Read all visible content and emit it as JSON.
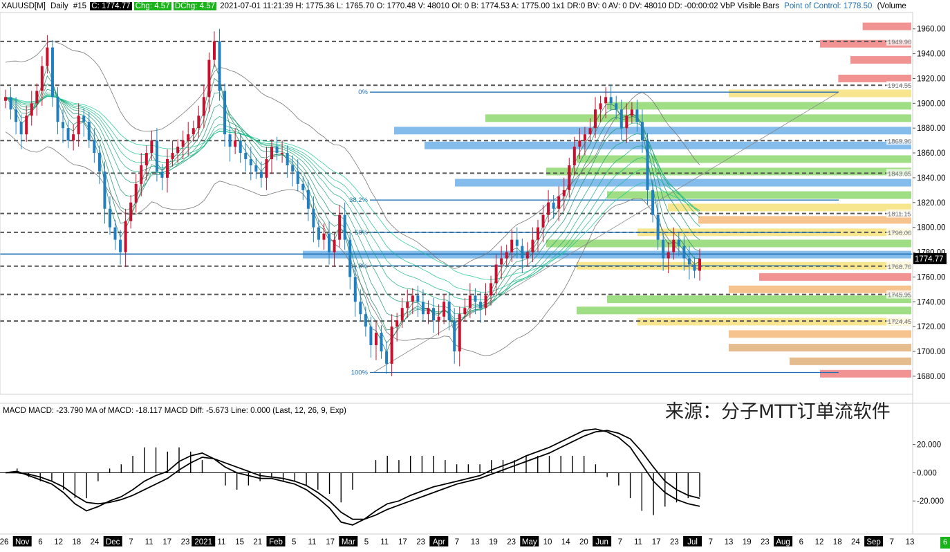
{
  "header": {
    "symbol": "XAUUSD[M]",
    "period": "Daily",
    "chart_no": "#15",
    "close": "C: 1774.77",
    "chg": "Chg: 4.57",
    "dchg": "DChg: 4.57",
    "rest": "2021-07-01 11:21:39 H: 1775.36 L: 1765.70 O: 1770.48 V: 48010 OI: 0 B: 1774.53 A: 1775.00 1x1 DR:0 BV: 0 AV: 0 DV: 48010 DD: -00:00:02 VbP Visible Bars",
    "poc": "Point of Control: 1778.50",
    "volume_cut": "(Volume"
  },
  "macd_header": "MACD  MACD: -23.790  MA of MACD: -18.117  MACD Diff: -5.673  Line: 0.000   (Last, 12, 26, 9, Exp)",
  "watermark": "来源：分子MTT订单流软件",
  "status_badge": "6",
  "colors": {
    "up": "#c8102e",
    "down": "#1f7fc0",
    "dashed": "#555555",
    "fib": "#1f6fb5",
    "vbp_red": "#f08080",
    "vbp_blue": "#6fb0e8",
    "vbp_green": "#8fd870",
    "vbp_yellow": "#f7e27a",
    "vbp_orange": "#f5b97a",
    "vbp_tan": "#e0b07a"
  },
  "chart_data": {
    "type": "candlestick",
    "price_axis": {
      "ticks": [
        "1960.00",
        "1940.00",
        "1920.00",
        "1900.00",
        "1880.00",
        "1860.00",
        "1840.00",
        "1820.00",
        "1800.00",
        "1780.00",
        "1760.00",
        "1740.00",
        "1720.00",
        "1700.00",
        "1680.00"
      ],
      "tick_values": [
        1960,
        1940,
        1920,
        1900,
        1880,
        1860,
        1840,
        1820,
        1800,
        1780,
        1760,
        1740,
        1720,
        1700,
        1680
      ],
      "range": [
        1671,
        1971
      ],
      "current_price": "1774.77",
      "current_value": 1774.77
    },
    "macd_axis": {
      "ticks": [
        "20.000",
        "0.000",
        "-20.000"
      ],
      "tick_values": [
        20,
        0,
        -20
      ],
      "range": [
        -40,
        37
      ]
    },
    "date_axis": [
      {
        "label": "26",
        "hl": false
      },
      {
        "label": "Nov",
        "hl": true
      },
      {
        "label": "6",
        "hl": false
      },
      {
        "label": "12",
        "hl": false
      },
      {
        "label": "18",
        "hl": false
      },
      {
        "label": "24",
        "hl": false
      },
      {
        "label": "Dec",
        "hl": true
      },
      {
        "label": "7",
        "hl": false
      },
      {
        "label": "11",
        "hl": false
      },
      {
        "label": "17",
        "hl": false
      },
      {
        "label": "23",
        "hl": false
      },
      {
        "label": "2021",
        "hl": true
      },
      {
        "label": "11",
        "hl": false
      },
      {
        "label": "15",
        "hl": false
      },
      {
        "label": "21",
        "hl": false
      },
      {
        "label": "Feb",
        "hl": true
      },
      {
        "label": "5",
        "hl": false
      },
      {
        "label": "11",
        "hl": false
      },
      {
        "label": "17",
        "hl": false
      },
      {
        "label": "Mar",
        "hl": true
      },
      {
        "label": "5",
        "hl": false
      },
      {
        "label": "11",
        "hl": false
      },
      {
        "label": "17",
        "hl": false
      },
      {
        "label": "23",
        "hl": false
      },
      {
        "label": "Apr",
        "hl": true
      },
      {
        "label": "7",
        "hl": false
      },
      {
        "label": "13",
        "hl": false
      },
      {
        "label": "19",
        "hl": false
      },
      {
        "label": "23",
        "hl": false
      },
      {
        "label": "May",
        "hl": true
      },
      {
        "label": "10",
        "hl": false
      },
      {
        "label": "14",
        "hl": false
      },
      {
        "label": "20",
        "hl": false
      },
      {
        "label": "Jun",
        "hl": true
      },
      {
        "label": "7",
        "hl": false
      },
      {
        "label": "11",
        "hl": false
      },
      {
        "label": "17",
        "hl": false
      },
      {
        "label": "23",
        "hl": false
      },
      {
        "label": "Jul",
        "hl": true
      },
      {
        "label": "7",
        "hl": false
      },
      {
        "label": "13",
        "hl": false
      },
      {
        "label": "19",
        "hl": false
      },
      {
        "label": "23",
        "hl": false
      },
      {
        "label": "Aug",
        "hl": true
      },
      {
        "label": "6",
        "hl": false
      },
      {
        "label": "12",
        "hl": false
      },
      {
        "label": "18",
        "hl": false
      },
      {
        "label": "24",
        "hl": false
      },
      {
        "label": "Sep",
        "hl": true
      },
      {
        "label": "7",
        "hl": false
      },
      {
        "label": "13",
        "hl": false
      }
    ],
    "hvn_levels": [
      {
        "label": "1949.90",
        "value": 1949.9
      },
      {
        "label": "1914.55",
        "value": 1914.55
      },
      {
        "label": "1869.90",
        "value": 1869.9
      },
      {
        "label": "1843.65",
        "value": 1843.65
      },
      {
        "label": "1811.15",
        "value": 1811.15
      },
      {
        "label": "1796.00",
        "value": 1796.0
      },
      {
        "label": "1768.70",
        "value": 1768.7
      },
      {
        "label": "1745.95",
        "value": 1745.95
      },
      {
        "label": "1724.45",
        "value": 1724.45
      }
    ],
    "poc_value": 1778.5,
    "fib_levels": [
      {
        "label": "0%",
        "value": 1909
      },
      {
        "label": "38.2%",
        "value": 1822
      },
      {
        "label": "50%",
        "value": 1796
      },
      {
        "label": "61.8%",
        "value": 1769
      },
      {
        "label": "100%",
        "value": 1683
      }
    ],
    "closes": [
      1905,
      1895,
      1885,
      1875,
      1890,
      1900,
      1910,
      1930,
      1945,
      1905,
      1885,
      1880,
      1870,
      1875,
      1890,
      1885,
      1870,
      1860,
      1845,
      1815,
      1800,
      1790,
      1780,
      1805,
      1820,
      1835,
      1850,
      1860,
      1870,
      1845,
      1840,
      1855,
      1860,
      1865,
      1870,
      1875,
      1880,
      1890,
      1905,
      1935,
      1950,
      1910,
      1875,
      1865,
      1870,
      1860,
      1855,
      1850,
      1845,
      1840,
      1855,
      1865,
      1860,
      1860,
      1850,
      1845,
      1835,
      1830,
      1815,
      1800,
      1790,
      1795,
      1780,
      1790,
      1810,
      1790,
      1760,
      1740,
      1730,
      1720,
      1705,
      1715,
      1700,
      1690,
      1720,
      1725,
      1735,
      1740,
      1745,
      1740,
      1730,
      1735,
      1725,
      1728,
      1740,
      1725,
      1700,
      1730,
      1735,
      1745,
      1740,
      1735,
      1745,
      1755,
      1770,
      1775,
      1780,
      1790,
      1785,
      1775,
      1780,
      1790,
      1800,
      1810,
      1820,
      1815,
      1825,
      1830,
      1850,
      1865,
      1870,
      1875,
      1880,
      1895,
      1900,
      1905,
      1900,
      1895,
      1880,
      1890,
      1895,
      1885,
      1870,
      1830,
      1810,
      1790,
      1775,
      1780,
      1790,
      1785,
      1775,
      1770,
      1765,
      1774.77
    ],
    "macd": [
      0,
      1,
      -2,
      -5,
      -8,
      -14,
      -22,
      -27,
      -24,
      -20,
      -17,
      -12,
      -6,
      -2,
      1,
      8,
      12,
      14,
      10,
      4,
      0,
      -2,
      -4,
      -4,
      -6,
      -8,
      -12,
      -18,
      -25,
      -35,
      -37,
      -33,
      -27,
      -22,
      -20,
      -16,
      -13,
      -10,
      -8,
      -6,
      -4,
      -2,
      2,
      5,
      8,
      12,
      15,
      18,
      22,
      26,
      30,
      31,
      29,
      25,
      18,
      6,
      -6,
      -14,
      -19,
      -22,
      -23.79
    ],
    "macd_signal": [
      0,
      0,
      -1,
      -3,
      -6,
      -10,
      -16,
      -21,
      -22,
      -21,
      -19,
      -16,
      -12,
      -8,
      -4,
      2,
      7,
      11,
      10,
      7,
      4,
      1,
      -2,
      -3,
      -4,
      -6,
      -9,
      -14,
      -20,
      -28,
      -33,
      -33,
      -30,
      -26,
      -23,
      -20,
      -17,
      -14,
      -11,
      -8,
      -6,
      -4,
      -1,
      2,
      5,
      8,
      11,
      14,
      18,
      22,
      26,
      29,
      30,
      28,
      24,
      15,
      4,
      -6,
      -12,
      -16,
      -18.117
    ],
    "vbp_profile": [
      {
        "value": 1962,
        "len": 0.08,
        "color": "vbp_red"
      },
      {
        "value": 1948,
        "len": 0.15,
        "color": "vbp_red"
      },
      {
        "value": 1935,
        "len": 0.1,
        "color": "vbp_red"
      },
      {
        "value": 1920,
        "len": 0.12,
        "color": "vbp_red"
      },
      {
        "value": 1908,
        "len": 0.3,
        "color": "vbp_yellow"
      },
      {
        "value": 1898,
        "len": 0.5,
        "color": "vbp_green"
      },
      {
        "value": 1888,
        "len": 0.7,
        "color": "vbp_green"
      },
      {
        "value": 1878,
        "len": 0.85,
        "color": "vbp_blue"
      },
      {
        "value": 1866,
        "len": 0.8,
        "color": "vbp_blue"
      },
      {
        "value": 1855,
        "len": 0.55,
        "color": "vbp_green"
      },
      {
        "value": 1845,
        "len": 0.6,
        "color": "vbp_green"
      },
      {
        "value": 1836,
        "len": 0.75,
        "color": "vbp_blue"
      },
      {
        "value": 1826,
        "len": 0.5,
        "color": "vbp_green"
      },
      {
        "value": 1816,
        "len": 0.4,
        "color": "vbp_yellow"
      },
      {
        "value": 1806,
        "len": 0.35,
        "color": "vbp_orange"
      },
      {
        "value": 1796,
        "len": 0.45,
        "color": "vbp_yellow"
      },
      {
        "value": 1787,
        "len": 0.6,
        "color": "vbp_green"
      },
      {
        "value": 1778,
        "len": 1.0,
        "color": "vbp_blue"
      },
      {
        "value": 1769,
        "len": 0.55,
        "color": "vbp_yellow"
      },
      {
        "value": 1760,
        "len": 0.25,
        "color": "vbp_red"
      },
      {
        "value": 1750,
        "len": 0.3,
        "color": "vbp_orange"
      },
      {
        "value": 1742,
        "len": 0.5,
        "color": "vbp_green"
      },
      {
        "value": 1733,
        "len": 0.55,
        "color": "vbp_green"
      },
      {
        "value": 1724,
        "len": 0.45,
        "color": "vbp_yellow"
      },
      {
        "value": 1714,
        "len": 0.3,
        "color": "vbp_orange"
      },
      {
        "value": 1703,
        "len": 0.3,
        "color": "vbp_tan"
      },
      {
        "value": 1692,
        "len": 0.2,
        "color": "vbp_tan"
      },
      {
        "value": 1682,
        "len": 0.15,
        "color": "vbp_red"
      }
    ]
  }
}
